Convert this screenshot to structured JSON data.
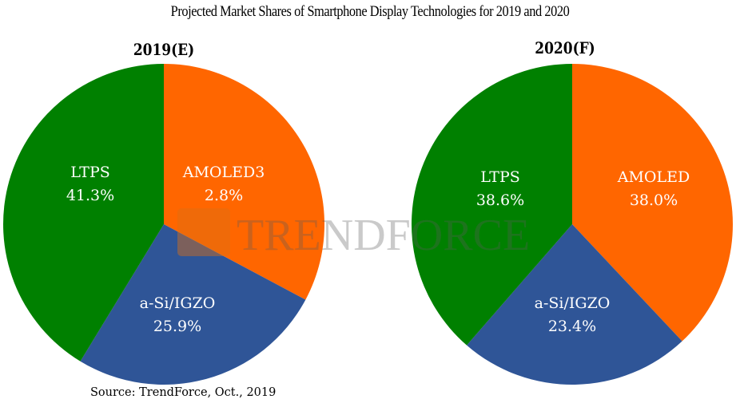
{
  "chart_data": [
    {
      "type": "pie",
      "title": "2019(E)",
      "start": "12 o'clock, clockwise",
      "slices": [
        {
          "name": "AMOLED",
          "value": 32.8,
          "label_line1": "AMOLED3",
          "label_line2": "2.8%",
          "color": "#ff6600"
        },
        {
          "name": "a-Si/IGZO",
          "value": 25.9,
          "label_line1": "a-Si/IGZO",
          "label_line2": "25.9%",
          "color": "#2f5597"
        },
        {
          "name": "LTPS",
          "value": 41.3,
          "label_line1": "LTPS",
          "label_line2": "41.3%",
          "color": "#008000"
        }
      ]
    },
    {
      "type": "pie",
      "title": "2020(F)",
      "start": "12 o'clock, clockwise",
      "slices": [
        {
          "name": "AMOLED",
          "value": 38.0,
          "label_line1": "AMOLED",
          "label_line2": "38.0%",
          "color": "#ff6600"
        },
        {
          "name": "a-Si/IGZO",
          "value": 23.4,
          "label_line1": "a-Si/IGZO",
          "label_line2": "23.4%",
          "color": "#2f5597"
        },
        {
          "name": "LTPS",
          "value": 38.6,
          "label_line1": "LTPS",
          "label_line2": "38.6%",
          "color": "#008000"
        }
      ]
    }
  ],
  "figure": {
    "title": "Projected Market Shares of Smartphone Display Technologies for 2019 and 2020",
    "source": "Source: TrendForce, Oct., 2019",
    "watermark": "TRENDFORCE"
  }
}
